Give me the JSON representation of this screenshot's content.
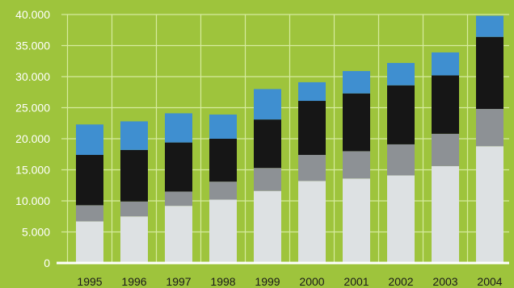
{
  "chart_data": {
    "type": "bar",
    "stacked": true,
    "title": "",
    "xlabel": "",
    "ylabel": "",
    "ylim": [
      0,
      40000
    ],
    "yticks": [
      "0",
      "5.000",
      "10.000",
      "15.000",
      "20.000",
      "25.000",
      "30.000",
      "35.000",
      "40.000"
    ],
    "ytick_values": [
      0,
      5000,
      10000,
      15000,
      20000,
      25000,
      30000,
      35000,
      40000
    ],
    "grid": true,
    "legend": "none",
    "categories": [
      "1995",
      "1996",
      "1997",
      "1998",
      "1999",
      "2000",
      "2001",
      "2002",
      "2003",
      "2004"
    ],
    "series": [
      {
        "color": "#dde1e3",
        "values": [
          6700,
          7500,
          9200,
          10200,
          11600,
          13200,
          13600,
          14100,
          15600,
          18800
        ]
      },
      {
        "color": "#8d9195",
        "values": [
          2600,
          2400,
          2300,
          2900,
          3700,
          4200,
          4400,
          5000,
          5200,
          6000
        ]
      },
      {
        "color": "#161616",
        "values": [
          8100,
          8300,
          7900,
          6900,
          7800,
          8700,
          9300,
          9500,
          9400,
          11600
        ]
      },
      {
        "color": "#3f8fd0",
        "values": [
          4900,
          4600,
          4700,
          3900,
          4900,
          3000,
          3600,
          3600,
          3700,
          3400
        ]
      }
    ],
    "colors": {
      "background": "#9ec43c",
      "grid": "#d6eb9e",
      "baseline": "#ffffff"
    }
  }
}
